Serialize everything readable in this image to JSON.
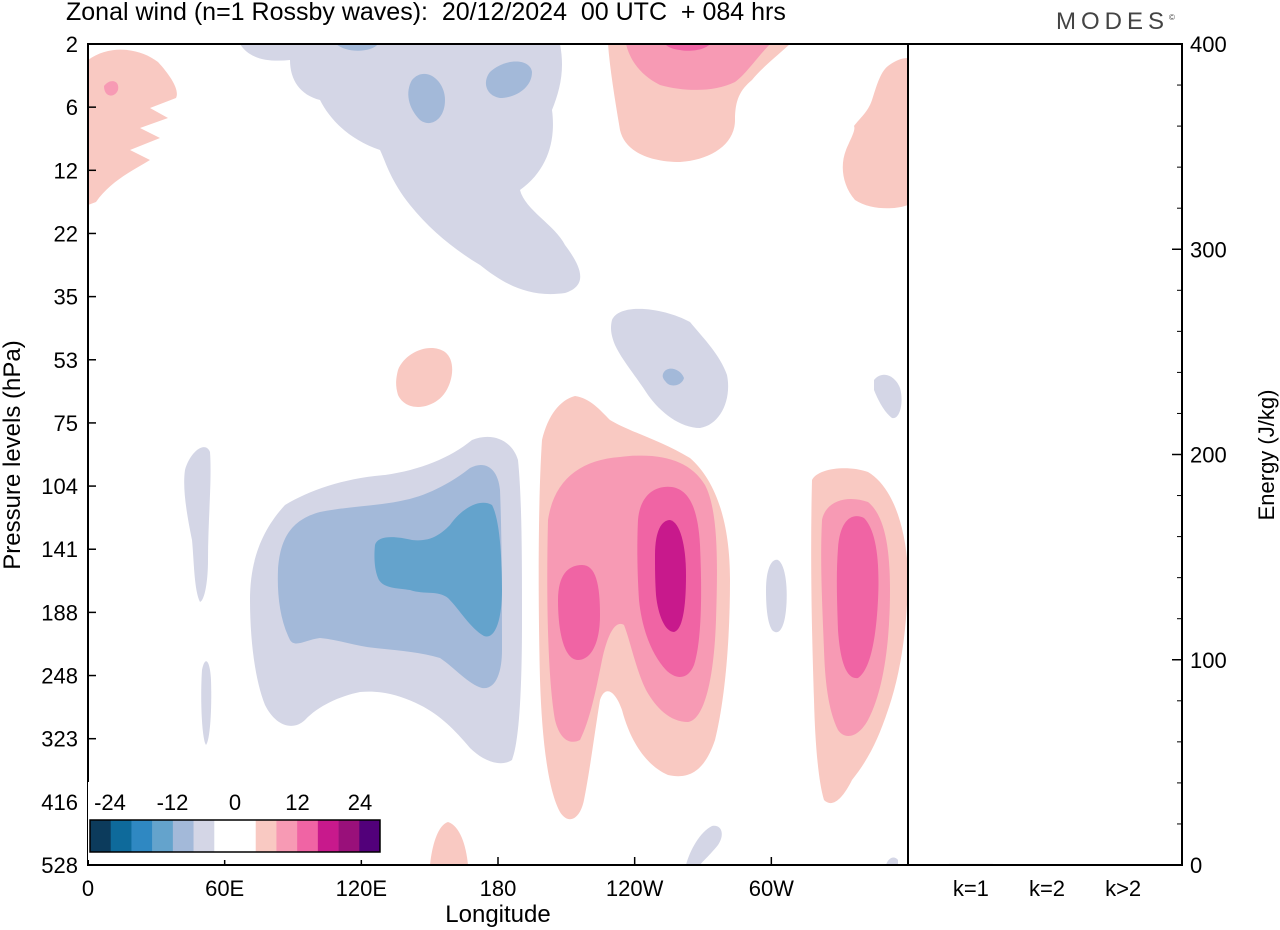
{
  "header": {
    "title": "Zonal wind (n=1 Rossby waves):  20/12/2024  00 UTC  + 084 hrs",
    "logo": "MODES",
    "logo_mark": "©"
  },
  "chart_data": [
    {
      "type": "contour",
      "title": "Zonal wind (n=1 Rossby waves):  20/12/2024  00 UTC  + 084 hrs",
      "xlabel": "Longitude",
      "ylabel": "Pressure levels (hPa)",
      "x_ticks": [
        "0",
        "60E",
        "120E",
        "180",
        "120W",
        "60W"
      ],
      "x_tick_values": [
        0,
        60,
        120,
        180,
        240,
        300
      ],
      "xlim": [
        0,
        360
      ],
      "y_ticks": [
        "2",
        "6",
        "12",
        "22",
        "35",
        "53",
        "75",
        "104",
        "141",
        "188",
        "248",
        "323",
        "416",
        "528"
      ],
      "y_scale": "categorical pressure levels, top to bottom",
      "colorbar": {
        "labels": [
          "-24",
          "-12",
          "0",
          "12",
          "24"
        ],
        "colors": [
          "#0c3b5c",
          "#0e6a9b",
          "#2f88c2",
          "#64a3cc",
          "#a3b9d9",
          "#d4d6e6",
          "#ffffff",
          "#ffffff",
          "#f9c9c2",
          "#f79ab4",
          "#f064a4",
          "#c8198c",
          "#99107a",
          "#52007a"
        ]
      },
      "features": [
        {
          "sign": "negative",
          "level": "-4",
          "desc": "stratospheric negative anomaly near 180 from 2 to 35 hPa"
        },
        {
          "sign": "negative",
          "level": "-12",
          "desc": "negative core centred near 150E-170E around 141-188 hPa"
        },
        {
          "sign": "positive",
          "level": "16",
          "desc": "positive core near 130W around 141-188 hPa"
        },
        {
          "sign": "positive",
          "level": "12",
          "desc": "positive core near 35W around 141-248 hPa"
        },
        {
          "sign": "positive",
          "level": "8",
          "desc": "positive anomaly near 120W at 2 hPa"
        }
      ]
    },
    {
      "type": "bar",
      "categories": [
        "k=1",
        "k=2",
        "k>2"
      ],
      "values": [
        0.5,
        0.3,
        0.3
      ],
      "ylabel": "Energy (J/kg)",
      "ylim": [
        0,
        400
      ],
      "y_ticks": [
        "0",
        "100",
        "200",
        "300",
        "400"
      ]
    }
  ]
}
